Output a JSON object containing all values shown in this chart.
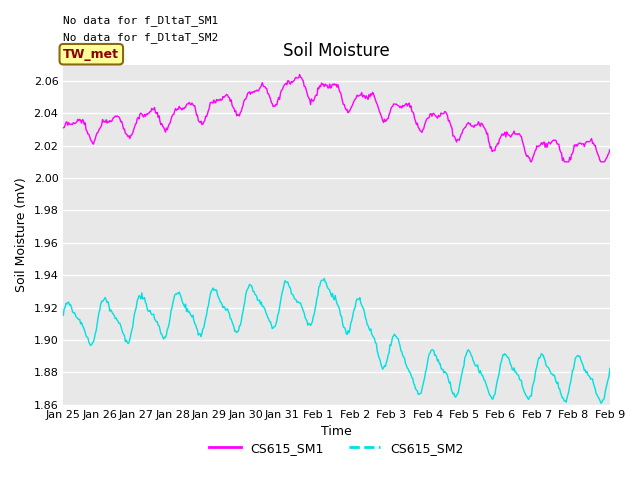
{
  "title": "Soil Moisture",
  "ylabel": "Soil Moisture (mV)",
  "xlabel": "Time",
  "ylim": [
    1.86,
    2.07
  ],
  "yticks": [
    1.86,
    1.88,
    1.9,
    1.92,
    1.94,
    1.96,
    1.98,
    2.0,
    2.02,
    2.04,
    2.06
  ],
  "xtick_labels": [
    "Jan 25",
    "Jan 26",
    "Jan 27",
    "Jan 28",
    "Jan 29",
    "Jan 30",
    "Jan 31",
    "Feb 1",
    "Feb 2",
    "Feb 3",
    "Feb 4",
    "Feb 5",
    "Feb 6",
    "Feb 7",
    "Feb 8",
    "Feb 9"
  ],
  "bg_color": "#e8e8e8",
  "fig_color": "#ffffff",
  "grid_color": "#ffffff",
  "sm1_color": "#ff00ff",
  "sm2_color": "#00e0e0",
  "sm1_label": "CS615_SM1",
  "sm2_label": "CS615_SM2",
  "tw_met_label": "TW_met",
  "tw_met_bg": "#ffff99",
  "tw_met_border": "#8b6914",
  "tw_met_text_color": "#8b0000",
  "no_data_text1": "No data for f_DltaT_SM1",
  "no_data_text2": "No data for f_DltaT_SM2",
  "title_fontsize": 12,
  "label_fontsize": 9,
  "tick_fontsize": 8,
  "legend_fontsize": 9,
  "figwidth": 6.4,
  "figheight": 4.8,
  "dpi": 100
}
